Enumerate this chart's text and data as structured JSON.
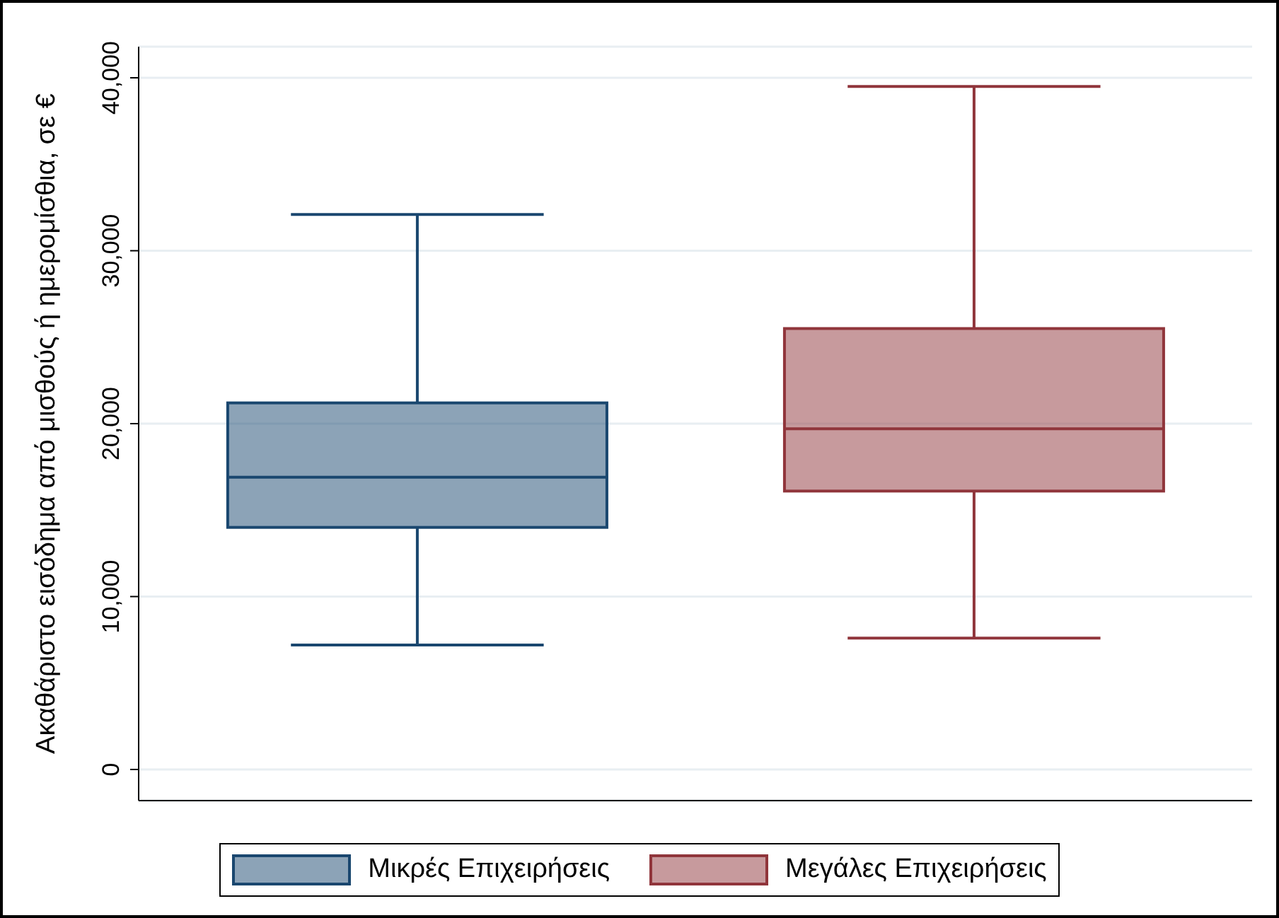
{
  "chart_data": {
    "type": "box",
    "ylabel": "Ακαθάριστο εισόδημα από μισθούς ή ημερομίσθια, σε €",
    "categories": [
      null,
      null
    ],
    "series": [
      {
        "name": "Μικρές Επιχειρήσεις",
        "color": "#1a476f",
        "boxes": [
          {
            "low": 7200,
            "q1": 14000,
            "median": 16900,
            "q3": 21200,
            "high": 32100
          },
          null
        ]
      },
      {
        "name": "Μεγάλες Επιχειρήσεις",
        "color": "#90353b",
        "boxes": [
          null,
          {
            "low": 7600,
            "q1": 16100,
            "median": 19700,
            "q3": 25500,
            "high": 39500
          }
        ]
      }
    ],
    "ylim": [
      -1800,
      41800
    ],
    "yticks": [
      0,
      {
        "value": 10000,
        "label": "10,000"
      },
      {
        "value": 20000,
        "label": "20,000"
      },
      {
        "value": 30000,
        "label": "30,000"
      },
      {
        "value": 40000,
        "label": "40,000"
      }
    ],
    "grid": "y",
    "legend": "bottom"
  }
}
